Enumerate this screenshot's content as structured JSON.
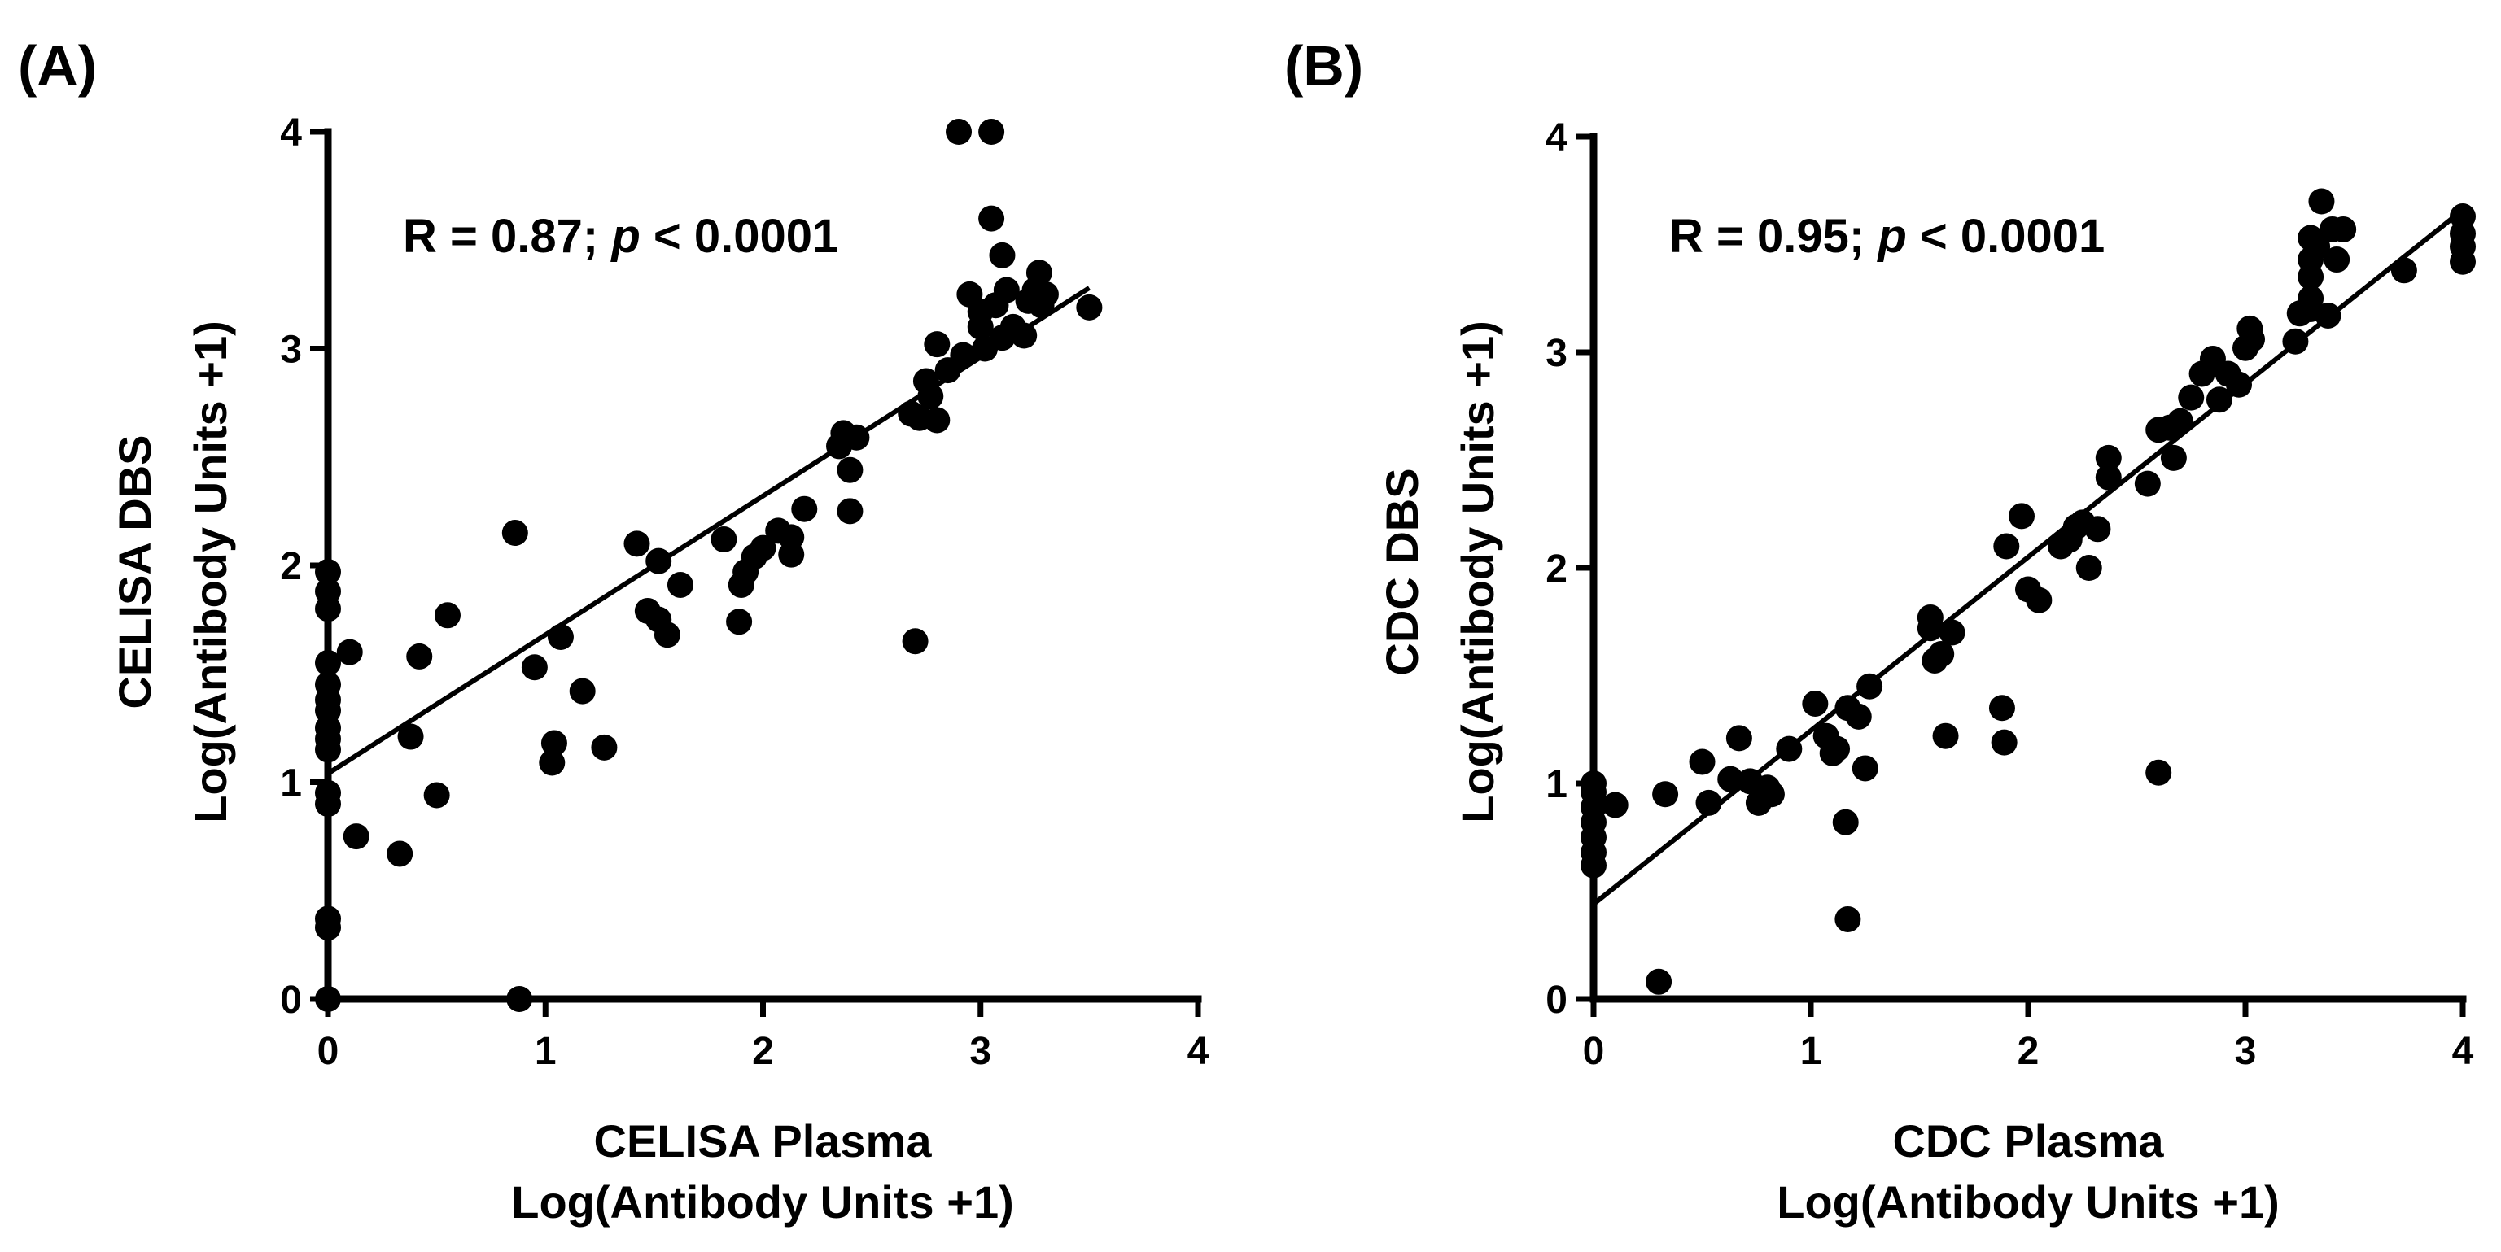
{
  "chart_data": [
    {
      "type": "scatter",
      "panel_label": "(A)",
      "annotation": {
        "r_text": "R = 0.87; ",
        "p_symbol": "p",
        "p_text": " < 0.0001"
      },
      "xlabel": [
        "CELISA Plasma",
        "Log(Antibody Units +1)"
      ],
      "ylabel": [
        "CELISA DBS",
        "Log(Antibody Units +1)"
      ],
      "xlim": [
        0,
        4
      ],
      "ylim": [
        0,
        4
      ],
      "xticks": [
        0,
        1,
        2,
        3,
        4
      ],
      "yticks": [
        0,
        1,
        2,
        3,
        4
      ],
      "xtick_labels": [
        "0",
        "1",
        "2",
        "3",
        "4"
      ],
      "ytick_labels": [
        "0",
        "1",
        "2",
        "3",
        "4"
      ],
      "fit_line": {
        "x": [
          0,
          3.5
        ],
        "y": [
          1.04,
          3.28
        ]
      },
      "points": [
        [
          0,
          0
        ],
        [
          0,
          0.33
        ],
        [
          0,
          0.37
        ],
        [
          0,
          0.9
        ],
        [
          0,
          0.95
        ],
        [
          0,
          1.15
        ],
        [
          0,
          1.2
        ],
        [
          0,
          1.25
        ],
        [
          0,
          1.33
        ],
        [
          0,
          1.38
        ],
        [
          0,
          1.45
        ],
        [
          0,
          1.55
        ],
        [
          0,
          1.8
        ],
        [
          0,
          1.88
        ],
        [
          0,
          1.97
        ],
        [
          0.1,
          1.6
        ],
        [
          0.13,
          0.75
        ],
        [
          0.33,
          0.67
        ],
        [
          0.38,
          1.21
        ],
        [
          0.42,
          1.58
        ],
        [
          0.5,
          0.94
        ],
        [
          0.55,
          1.77
        ],
        [
          0.88,
          0
        ],
        [
          0.86,
          2.15
        ],
        [
          0.95,
          1.53
        ],
        [
          1.03,
          1.09
        ],
        [
          1.04,
          1.18
        ],
        [
          1.07,
          1.67
        ],
        [
          1.17,
          1.42
        ],
        [
          1.27,
          1.16
        ],
        [
          1.42,
          2.1
        ],
        [
          1.47,
          1.79
        ],
        [
          1.52,
          1.75
        ],
        [
          1.52,
          2.02
        ],
        [
          1.56,
          1.68
        ],
        [
          1.62,
          1.91
        ],
        [
          1.82,
          2.12
        ],
        [
          1.89,
          1.74
        ],
        [
          1.9,
          1.91
        ],
        [
          1.92,
          1.97
        ],
        [
          1.96,
          2.04
        ],
        [
          2,
          2.08
        ],
        [
          2.07,
          2.16
        ],
        [
          2.13,
          2.05
        ],
        [
          2.13,
          2.13
        ],
        [
          2.19,
          2.26
        ],
        [
          2.35,
          2.55
        ],
        [
          2.37,
          2.61
        ],
        [
          2.4,
          2.25
        ],
        [
          2.4,
          2.44
        ],
        [
          2.43,
          2.59
        ],
        [
          2.68,
          2.7
        ],
        [
          2.7,
          1.65
        ],
        [
          2.72,
          2.68
        ],
        [
          2.75,
          2.85
        ],
        [
          2.77,
          2.78
        ],
        [
          2.8,
          2.67
        ],
        [
          2.8,
          3.02
        ],
        [
          2.85,
          2.9
        ],
        [
          2.9,
          4.0
        ],
        [
          2.92,
          2.97
        ],
        [
          2.95,
          3.25
        ],
        [
          3,
          3.1
        ],
        [
          3.0,
          3.17
        ],
        [
          3.02,
          3.0
        ],
        [
          3.05,
          4.0
        ],
        [
          3.05,
          3.6
        ],
        [
          3.07,
          3.2
        ],
        [
          3.1,
          3.05
        ],
        [
          3.1,
          3.43
        ],
        [
          3.12,
          3.27
        ],
        [
          3.15,
          3.1
        ],
        [
          3.2,
          3.06
        ],
        [
          3.22,
          3.22
        ],
        [
          3.25,
          3.27
        ],
        [
          3.27,
          3.35
        ],
        [
          3.28,
          3.2
        ],
        [
          3.3,
          3.25
        ],
        [
          3.5,
          3.19
        ]
      ]
    },
    {
      "type": "scatter",
      "panel_label": "(B)",
      "annotation": {
        "r_text": "R = 0.95; ",
        "p_symbol": "p",
        "p_text": " < 0.0001"
      },
      "xlabel": [
        "CDC Plasma",
        "Log(Antibody Units +1)"
      ],
      "ylabel": [
        "CDC DBS",
        "Log(Antibody Units +1)"
      ],
      "xlim": [
        0,
        4
      ],
      "ylim": [
        0,
        4
      ],
      "xticks": [
        0,
        1,
        2,
        3,
        4
      ],
      "yticks": [
        0,
        1,
        2,
        3,
        4
      ],
      "xtick_labels": [
        "0",
        "1",
        "2",
        "3",
        "4"
      ],
      "ytick_labels": [
        "0",
        "1",
        "2",
        "3",
        "4"
      ],
      "fit_line": {
        "x": [
          0,
          4
        ],
        "y": [
          0.44,
          3.66
        ]
      },
      "points": [
        [
          0,
          0.62
        ],
        [
          0,
          0.68
        ],
        [
          0,
          0.75
        ],
        [
          0,
          0.82
        ],
        [
          0,
          0.89
        ],
        [
          0,
          0.96
        ],
        [
          0,
          1.0
        ],
        [
          0.1,
          0.9
        ],
        [
          0.3,
          0.08
        ],
        [
          0.33,
          0.95
        ],
        [
          0.5,
          1.1
        ],
        [
          0.53,
          0.91
        ],
        [
          0.63,
          1.02
        ],
        [
          0.67,
          1.21
        ],
        [
          0.72,
          1.01
        ],
        [
          0.76,
          0.91
        ],
        [
          0.8,
          0.98
        ],
        [
          0.82,
          0.95
        ],
        [
          0.9,
          1.16
        ],
        [
          1.02,
          1.37
        ],
        [
          1.07,
          1.22
        ],
        [
          1.1,
          1.14
        ],
        [
          1.12,
          1.16
        ],
        [
          1.16,
          0.82
        ],
        [
          1.17,
          0.37
        ],
        [
          1.17,
          1.35
        ],
        [
          1.22,
          1.31
        ],
        [
          1.25,
          1.07
        ],
        [
          1.27,
          1.45
        ],
        [
          1.55,
          1.77
        ],
        [
          1.55,
          1.72
        ],
        [
          1.57,
          1.57
        ],
        [
          1.6,
          1.6
        ],
        [
          1.62,
          1.22
        ],
        [
          1.65,
          1.7
        ],
        [
          1.88,
          1.35
        ],
        [
          1.89,
          1.19
        ],
        [
          1.9,
          2.1
        ],
        [
          1.97,
          2.24
        ],
        [
          2.0,
          1.9
        ],
        [
          2.05,
          1.85
        ],
        [
          2.15,
          2.1
        ],
        [
          2.19,
          2.13
        ],
        [
          2.22,
          2.19
        ],
        [
          2.25,
          2.21
        ],
        [
          2.28,
          2.0
        ],
        [
          2.32,
          2.18
        ],
        [
          2.37,
          2.42
        ],
        [
          2.37,
          2.51
        ],
        [
          2.55,
          2.39
        ],
        [
          2.6,
          1.05
        ],
        [
          2.6,
          2.64
        ],
        [
          2.65,
          2.65
        ],
        [
          2.67,
          2.51
        ],
        [
          2.7,
          2.68
        ],
        [
          2.75,
          2.79
        ],
        [
          2.8,
          2.9
        ],
        [
          2.85,
          2.97
        ],
        [
          2.88,
          2.78
        ],
        [
          2.92,
          2.9
        ],
        [
          2.97,
          2.85
        ],
        [
          3.0,
          3.02
        ],
        [
          3.02,
          3.11
        ],
        [
          3.03,
          3.06
        ],
        [
          3.23,
          3.05
        ],
        [
          3.25,
          3.18
        ],
        [
          3.3,
          3.2
        ],
        [
          3.3,
          3.25
        ],
        [
          3.3,
          3.35
        ],
        [
          3.3,
          3.43
        ],
        [
          3.3,
          3.53
        ],
        [
          3.33,
          3.49
        ],
        [
          3.35,
          3.7
        ],
        [
          3.38,
          3.17
        ],
        [
          3.4,
          3.57
        ],
        [
          3.42,
          3.43
        ],
        [
          3.45,
          3.57
        ],
        [
          3.73,
          3.38
        ],
        [
          4,
          3.42
        ],
        [
          4,
          3.49
        ],
        [
          4,
          3.55
        ],
        [
          4,
          3.63
        ]
      ]
    }
  ]
}
